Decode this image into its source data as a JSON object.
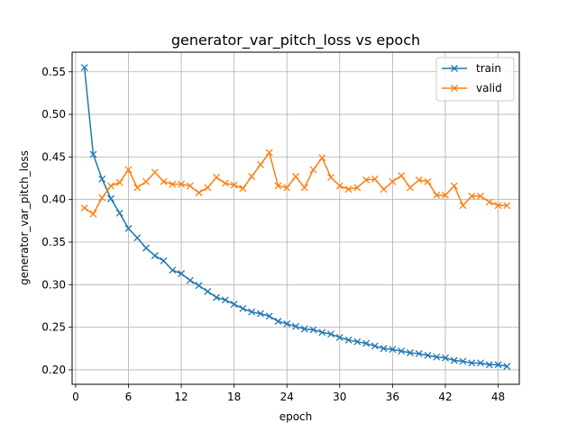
{
  "chart_data": {
    "type": "line",
    "title": "generator_var_pitch_loss vs epoch",
    "xlabel": "epoch",
    "ylabel": "generator_var_pitch_loss",
    "xlim": [
      -0.4,
      50.4
    ],
    "ylim": [
      0.183,
      0.573
    ],
    "xticks": [
      0,
      6,
      12,
      18,
      24,
      30,
      36,
      42,
      48
    ],
    "yticks": [
      0.2,
      0.25,
      0.3,
      0.35,
      0.4,
      0.45,
      0.5,
      0.55
    ],
    "ytick_labels": [
      "0.20",
      "0.25",
      "0.30",
      "0.35",
      "0.40",
      "0.45",
      "0.50",
      "0.55"
    ],
    "grid": true,
    "legend_position": "top-right",
    "marker": "x",
    "x": [
      1,
      2,
      3,
      4,
      5,
      6,
      7,
      8,
      9,
      10,
      11,
      12,
      13,
      14,
      15,
      16,
      17,
      18,
      19,
      20,
      21,
      22,
      23,
      24,
      25,
      26,
      27,
      28,
      29,
      30,
      31,
      32,
      33,
      34,
      35,
      36,
      37,
      38,
      39,
      40,
      41,
      42,
      43,
      44,
      45,
      46,
      47,
      48,
      49
    ],
    "series": [
      {
        "name": "train",
        "color": "#1f77b4",
        "values": [
          0.555,
          0.453,
          0.424,
          0.401,
          0.384,
          0.366,
          0.355,
          0.343,
          0.334,
          0.328,
          0.317,
          0.313,
          0.305,
          0.299,
          0.292,
          0.285,
          0.282,
          0.277,
          0.272,
          0.268,
          0.266,
          0.263,
          0.257,
          0.254,
          0.251,
          0.248,
          0.247,
          0.244,
          0.242,
          0.238,
          0.235,
          0.233,
          0.231,
          0.228,
          0.225,
          0.224,
          0.222,
          0.22,
          0.219,
          0.217,
          0.215,
          0.214,
          0.211,
          0.21,
          0.208,
          0.208,
          0.206,
          0.206,
          0.204
        ]
      },
      {
        "name": "valid",
        "color": "#ff7f0e",
        "values": [
          0.39,
          0.383,
          0.402,
          0.416,
          0.42,
          0.435,
          0.414,
          0.421,
          0.432,
          0.421,
          0.418,
          0.418,
          0.416,
          0.408,
          0.414,
          0.426,
          0.419,
          0.417,
          0.413,
          0.427,
          0.441,
          0.455,
          0.416,
          0.414,
          0.427,
          0.414,
          0.435,
          0.449,
          0.426,
          0.416,
          0.412,
          0.414,
          0.423,
          0.424,
          0.412,
          0.421,
          0.428,
          0.414,
          0.423,
          0.421,
          0.405,
          0.405,
          0.416,
          0.393,
          0.404,
          0.404,
          0.397,
          0.393,
          0.393
        ]
      }
    ]
  }
}
